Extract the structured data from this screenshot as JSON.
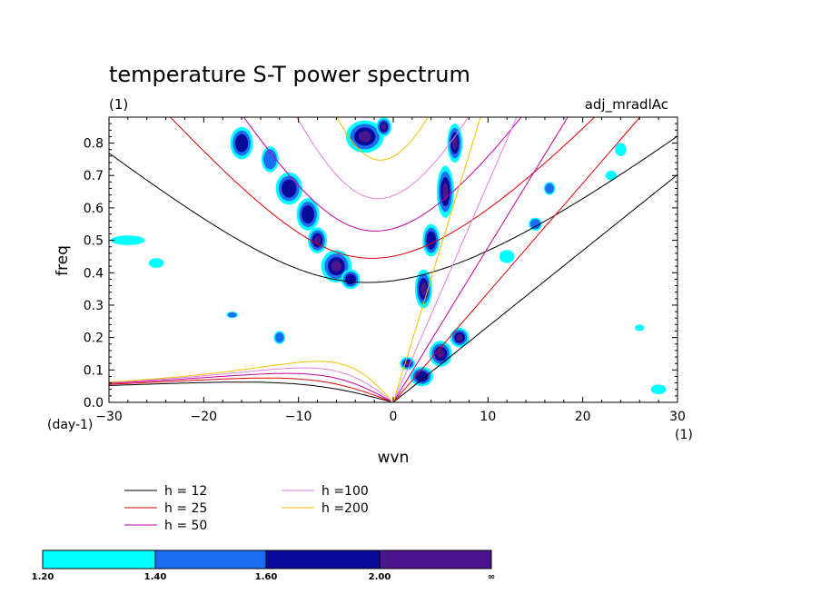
{
  "title": "temperature S-T power spectrum",
  "subtitle_left": "(1)",
  "subtitle_right": "adj_mradlAc",
  "x_unit_label": "(1)",
  "y_unit_label": "(day-1)",
  "chart_data": {
    "type": "contour",
    "xlabel": "wvn",
    "ylabel": "freq",
    "xlim": [
      -30,
      30
    ],
    "ylim": [
      0,
      0.88
    ],
    "xticks": [
      -30,
      -20,
      -10,
      0,
      10,
      20,
      30
    ],
    "yticks": [
      0.0,
      0.1,
      0.2,
      0.3,
      0.4,
      0.5,
      0.6,
      0.7,
      0.8
    ],
    "xtick_labels": [
      "-30",
      "-20",
      "-10",
      "0",
      "10",
      "20",
      "30"
    ],
    "ytick_labels": [
      "0.0",
      "0.1",
      "0.2",
      "0.3",
      "0.4",
      "0.5",
      "0.6",
      "0.7",
      "0.8"
    ],
    "dispersion_curves": [
      {
        "name": "h = 12",
        "h": 12,
        "color": "#000000"
      },
      {
        "name": "h = 25",
        "h": 25,
        "color": "#e00000"
      },
      {
        "name": "h = 50",
        "h": 50,
        "color": "#c000a0"
      },
      {
        "name": "h =100",
        "h": 100,
        "color": "#e080e0"
      },
      {
        "name": "h =200",
        "h": 200,
        "color": "#f0c000"
      }
    ],
    "shading_levels": [
      {
        "from": "1.20",
        "to": "1.40",
        "color": "#00ffff"
      },
      {
        "from": "1.40",
        "to": "1.60",
        "color": "#1a6cf0"
      },
      {
        "from": "1.60",
        "to": "2.00",
        "color": "#0a0a9a"
      },
      {
        "from": "2.00",
        "to": "∞",
        "color": "#4a148c"
      }
    ],
    "colorbar_labels": [
      "1.20",
      "1.40",
      "1.60",
      "2.00",
      "∞"
    ],
    "power_blobs": [
      {
        "x": -16,
        "y": 0.8,
        "rx": 1.2,
        "ry": 0.05,
        "level": 2
      },
      {
        "x": -13,
        "y": 0.75,
        "rx": 0.9,
        "ry": 0.04,
        "level": 1
      },
      {
        "x": -11,
        "y": 0.66,
        "rx": 1.4,
        "ry": 0.05,
        "level": 2
      },
      {
        "x": -9,
        "y": 0.58,
        "rx": 1.2,
        "ry": 0.05,
        "level": 2
      },
      {
        "x": -8,
        "y": 0.5,
        "rx": 1.0,
        "ry": 0.04,
        "level": 3
      },
      {
        "x": -6,
        "y": 0.42,
        "rx": 1.6,
        "ry": 0.05,
        "level": 3
      },
      {
        "x": -4.5,
        "y": 0.38,
        "rx": 1.0,
        "ry": 0.03,
        "level": 2
      },
      {
        "x": -3,
        "y": 0.82,
        "rx": 2.0,
        "ry": 0.05,
        "level": 3
      },
      {
        "x": -1,
        "y": 0.85,
        "rx": 0.8,
        "ry": 0.03,
        "level": 3
      },
      {
        "x": 3.2,
        "y": 0.35,
        "rx": 0.9,
        "ry": 0.06,
        "level": 3
      },
      {
        "x": 4,
        "y": 0.5,
        "rx": 0.9,
        "ry": 0.05,
        "level": 2
      },
      {
        "x": 5.5,
        "y": 0.65,
        "rx": 0.9,
        "ry": 0.08,
        "level": 3
      },
      {
        "x": 6.5,
        "y": 0.8,
        "rx": 0.8,
        "ry": 0.06,
        "level": 3
      },
      {
        "x": 1.5,
        "y": 0.12,
        "rx": 0.8,
        "ry": 0.02,
        "level": 3
      },
      {
        "x": 3,
        "y": 0.08,
        "rx": 1.2,
        "ry": 0.03,
        "level": 2
      },
      {
        "x": 5,
        "y": 0.15,
        "rx": 1.2,
        "ry": 0.04,
        "level": 3
      },
      {
        "x": 7,
        "y": 0.2,
        "rx": 1.0,
        "ry": 0.03,
        "level": 3
      },
      {
        "x": -28,
        "y": 0.5,
        "rx": 1.8,
        "ry": 0.015,
        "level": 0
      },
      {
        "x": -25,
        "y": 0.43,
        "rx": 0.8,
        "ry": 0.015,
        "level": 0
      },
      {
        "x": -17,
        "y": 0.27,
        "rx": 0.6,
        "ry": 0.01,
        "level": 1
      },
      {
        "x": -12,
        "y": 0.2,
        "rx": 0.6,
        "ry": 0.02,
        "level": 1
      },
      {
        "x": 12,
        "y": 0.45,
        "rx": 0.8,
        "ry": 0.02,
        "level": 0
      },
      {
        "x": 15,
        "y": 0.55,
        "rx": 0.7,
        "ry": 0.02,
        "level": 1
      },
      {
        "x": 16.5,
        "y": 0.66,
        "rx": 0.6,
        "ry": 0.02,
        "level": 1
      },
      {
        "x": 23,
        "y": 0.7,
        "rx": 0.6,
        "ry": 0.015,
        "level": 0
      },
      {
        "x": 24,
        "y": 0.78,
        "rx": 0.6,
        "ry": 0.02,
        "level": 0
      },
      {
        "x": 28,
        "y": 0.04,
        "rx": 0.8,
        "ry": 0.015,
        "level": 0
      },
      {
        "x": 26,
        "y": 0.23,
        "rx": 0.5,
        "ry": 0.01,
        "level": 0
      }
    ]
  }
}
